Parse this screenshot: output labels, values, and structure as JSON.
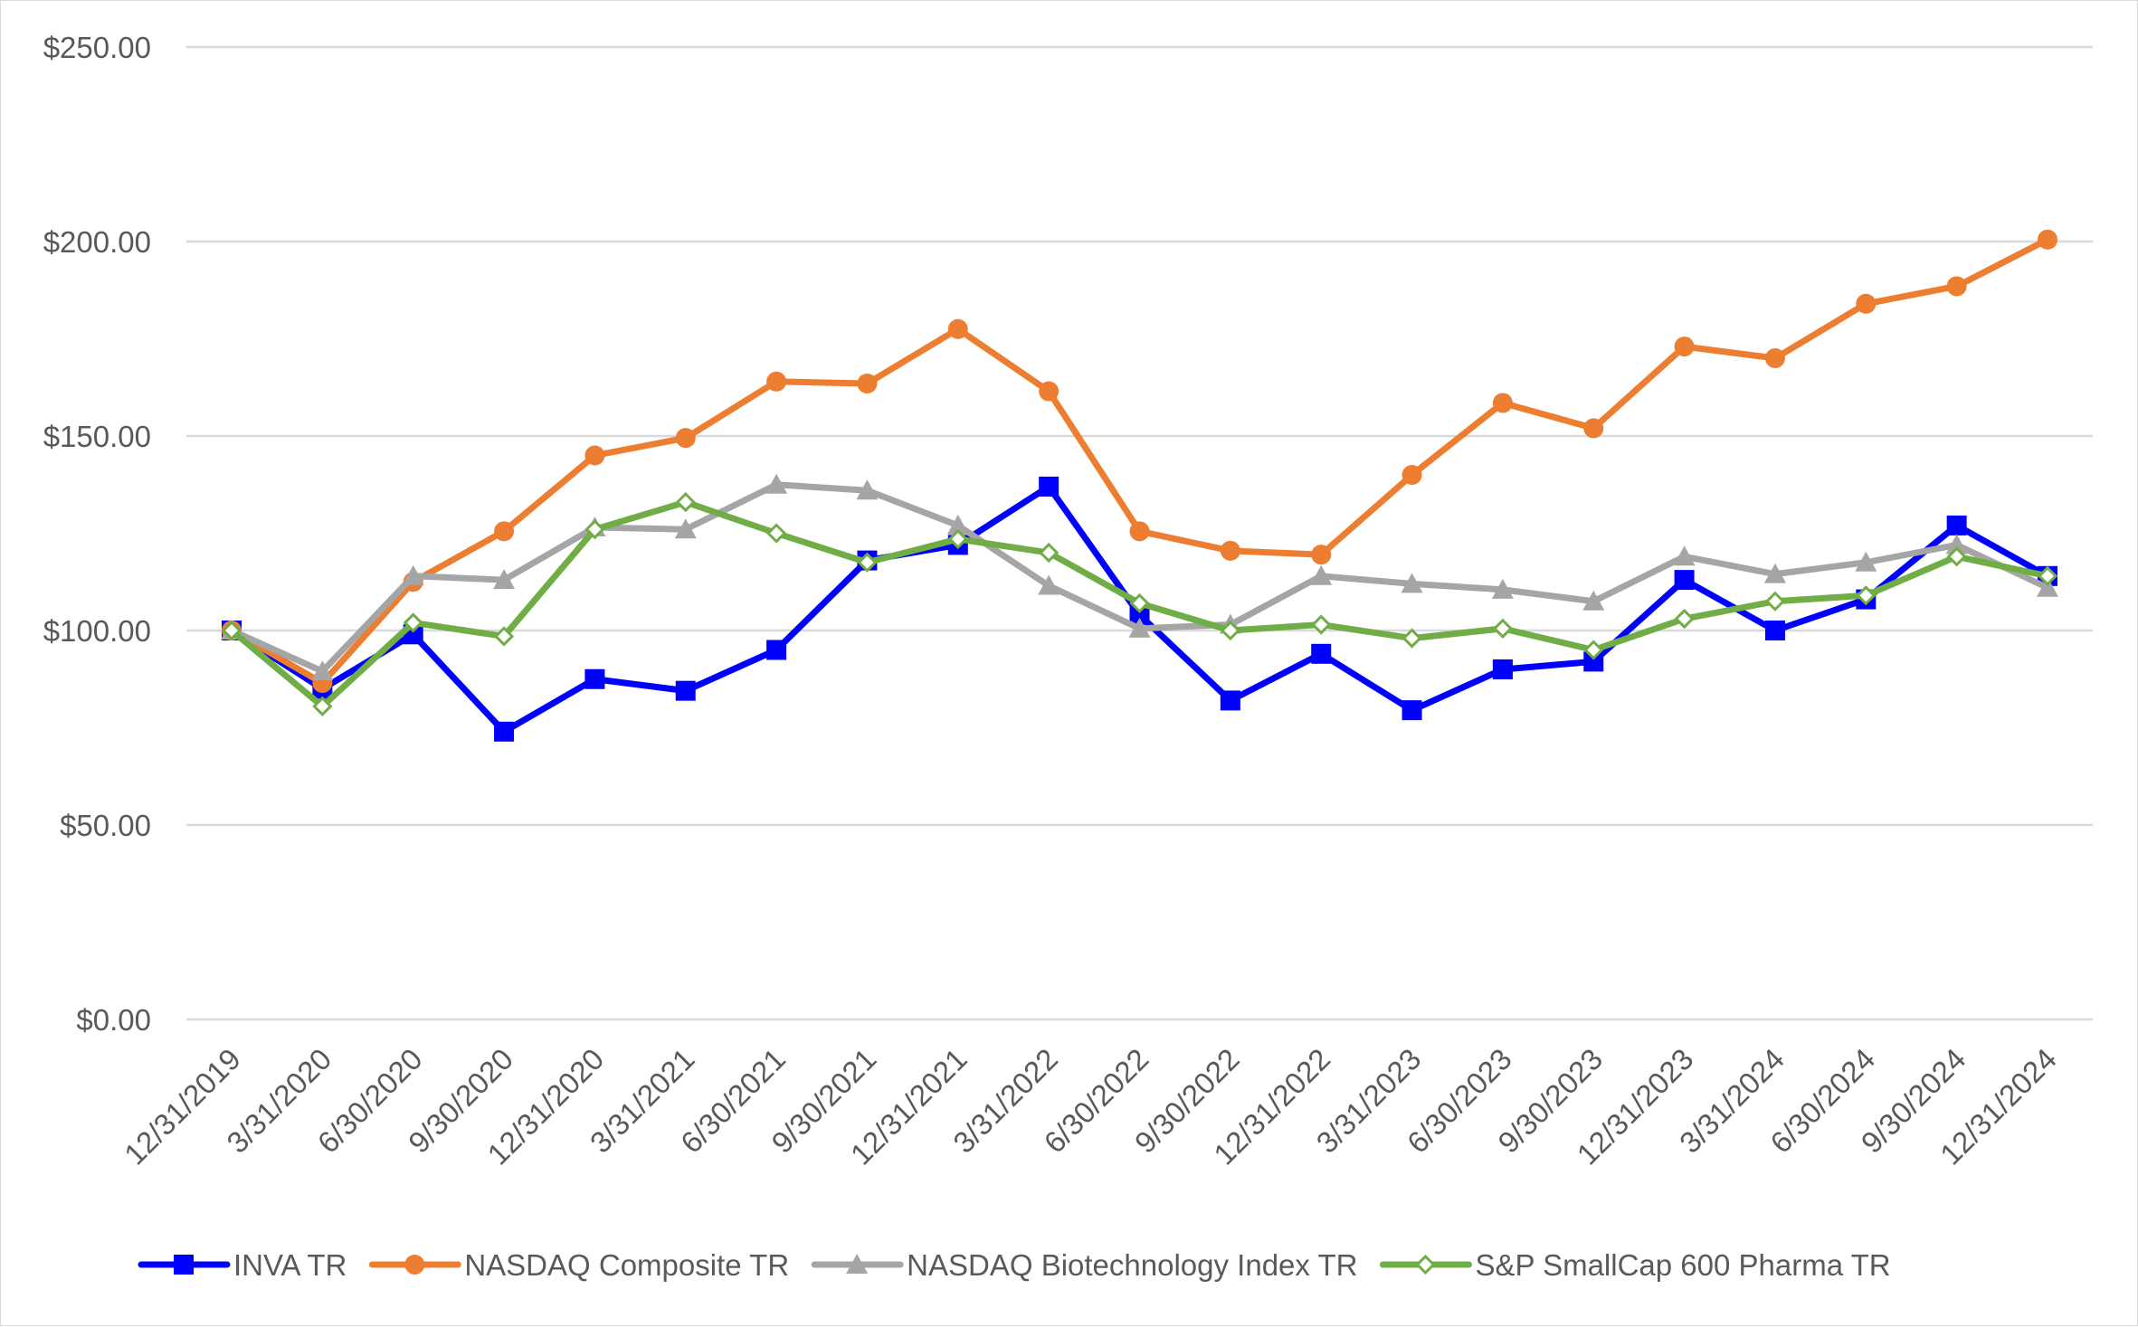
{
  "chart_data": {
    "type": "line",
    "title": "",
    "xlabel": "",
    "ylabel": "",
    "ylim": [
      0,
      250
    ],
    "y_ticks": [
      0,
      50,
      100,
      150,
      200,
      250
    ],
    "y_tick_labels": [
      "$0.00",
      "$50.00",
      "$100.00",
      "$150.00",
      "$200.00",
      "$250.00"
    ],
    "grid": "horizontal",
    "legend_position": "bottom",
    "categories": [
      "12/31/2019",
      "3/31/2020",
      "6/30/2020",
      "9/30/2020",
      "12/31/2020",
      "3/31/2021",
      "6/30/2021",
      "9/30/2021",
      "12/31/2021",
      "3/31/2022",
      "6/30/2022",
      "9/30/2022",
      "12/31/2022",
      "3/31/2023",
      "6/30/2023",
      "9/30/2023",
      "12/31/2023",
      "3/31/2024",
      "6/30/2024",
      "9/30/2024",
      "12/31/2024"
    ],
    "series": [
      {
        "name": "INVA TR",
        "color": "#0000ff",
        "marker": "square",
        "values": [
          100,
          85,
          99,
          74,
          87.5,
          84.5,
          95,
          118,
          122,
          137,
          104,
          82,
          94,
          79.5,
          90,
          92,
          113,
          100,
          108,
          127,
          114
        ]
      },
      {
        "name": "NASDAQ Composite TR",
        "color": "#ed7d31",
        "marker": "circle",
        "values": [
          100,
          86.5,
          112.5,
          125.5,
          145,
          149.5,
          164,
          163.5,
          177.5,
          161.5,
          125.5,
          120.5,
          119.5,
          140,
          158.5,
          152,
          173,
          170,
          184,
          188.5,
          200.5
        ]
      },
      {
        "name": "NASDAQ Biotechnology Index TR",
        "color": "#a5a5a5",
        "marker": "triangle",
        "values": [
          100,
          89.5,
          114,
          113,
          126.5,
          126,
          137.5,
          136,
          127,
          111.5,
          100.5,
          101.5,
          114,
          112,
          110.5,
          107.5,
          119,
          114.5,
          117.5,
          122,
          111
        ]
      },
      {
        "name": "S&P SmallCap 600 Pharma TR",
        "color": "#70ad47",
        "marker": "diamond-open",
        "values": [
          100,
          80.5,
          102,
          98.5,
          126,
          133,
          125,
          117.5,
          123.5,
          120,
          107,
          100,
          101.5,
          98,
          100.5,
          95,
          103,
          107.5,
          109,
          119,
          114
        ]
      }
    ]
  }
}
